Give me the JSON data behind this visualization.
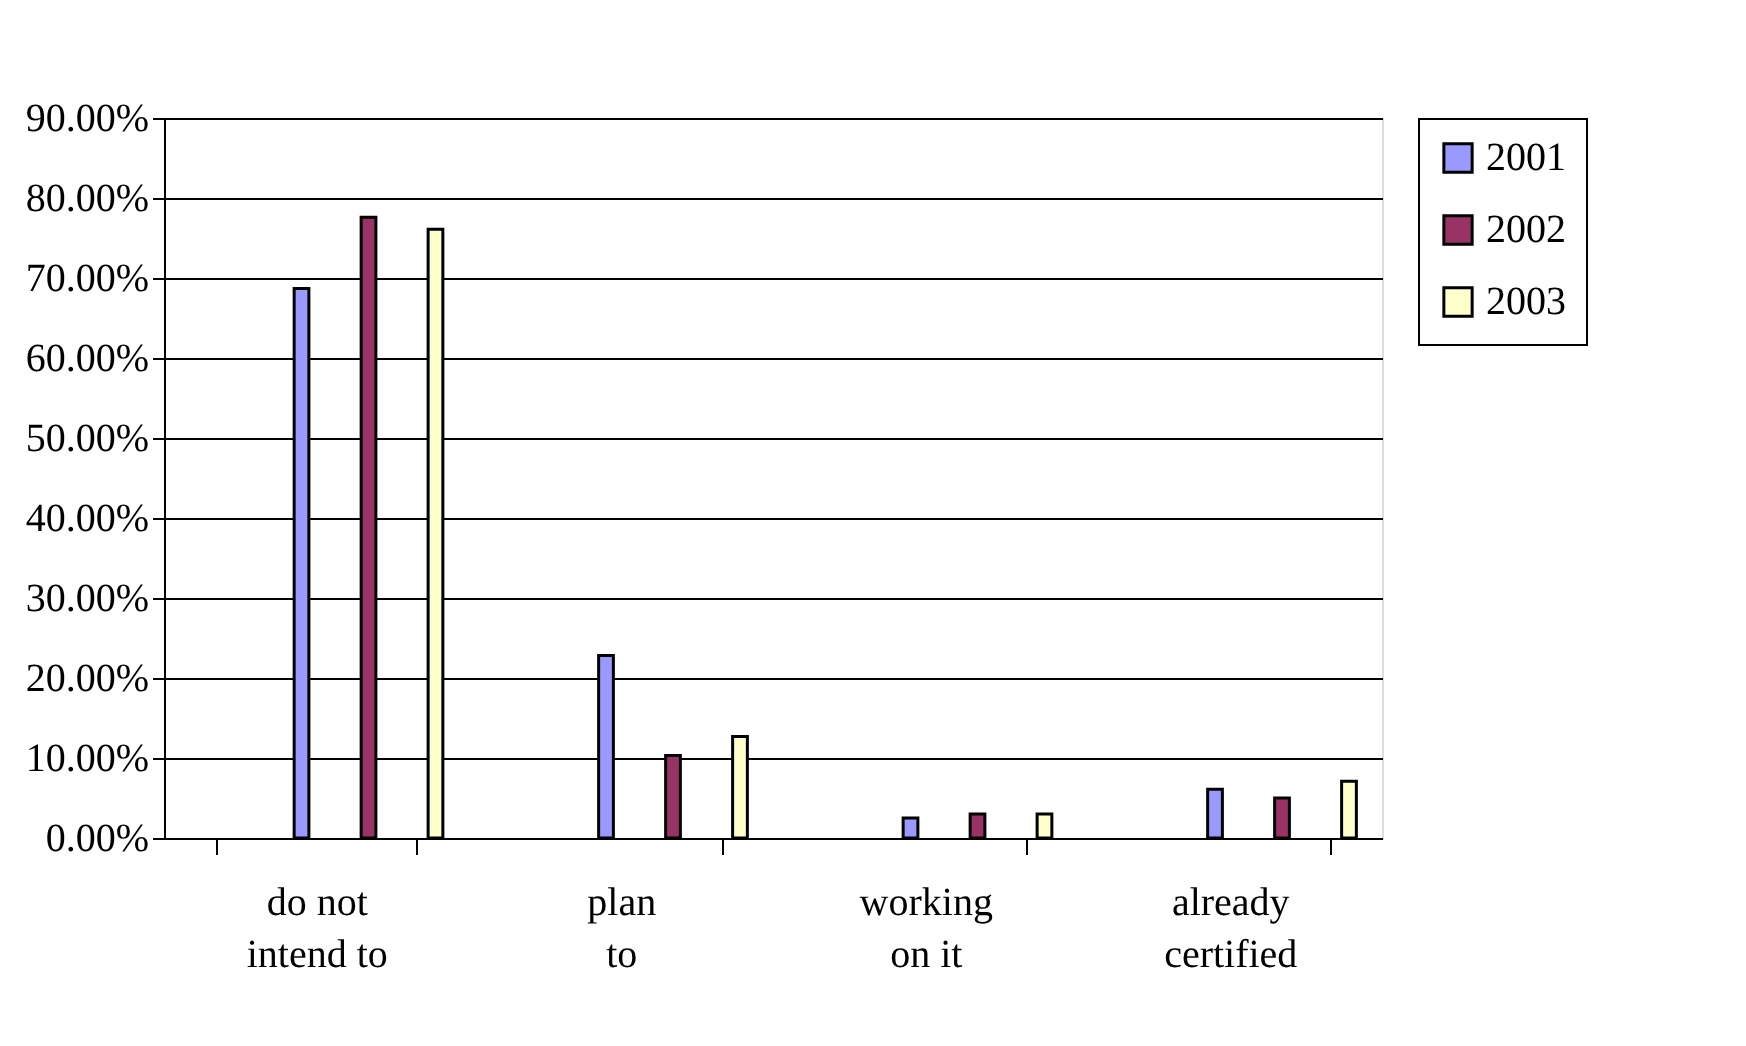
{
  "chart_data": {
    "type": "bar",
    "categories": [
      "do not intend to",
      "plan to",
      "working on it",
      "already certified"
    ],
    "series": [
      {
        "name": "2001",
        "color": "#9999ff",
        "values": [
          68.7,
          22.8,
          2.5,
          6.1
        ]
      },
      {
        "name": "2002",
        "color": "#993366",
        "values": [
          77.6,
          10.3,
          3.0,
          5.0
        ]
      },
      {
        "name": "2003",
        "color": "#ffffcc",
        "values": [
          76.1,
          12.7,
          3.0,
          7.1
        ]
      }
    ],
    "ylim": [
      0,
      90
    ],
    "yticks": [
      {
        "value": 0,
        "label": "0.00%"
      },
      {
        "value": 10,
        "label": "10.00%"
      },
      {
        "value": 20,
        "label": "20.00%"
      },
      {
        "value": 30,
        "label": "30.00%"
      },
      {
        "value": 40,
        "label": "40.00%"
      },
      {
        "value": 50,
        "label": "50.00%"
      },
      {
        "value": 60,
        "label": "60.00%"
      },
      {
        "value": 70,
        "label": "70.00%"
      },
      {
        "value": 80,
        "label": "80.00%"
      },
      {
        "value": 90,
        "label": "90.00%"
      }
    ],
    "grid": "y",
    "legend": "right"
  }
}
